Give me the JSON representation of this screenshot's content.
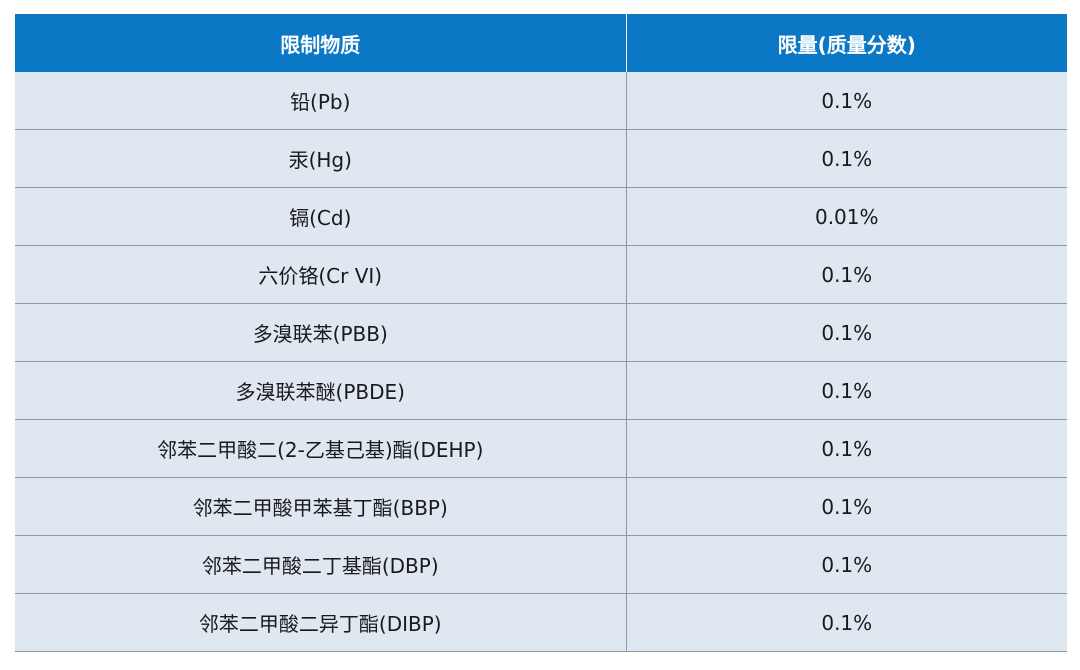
{
  "table": {
    "headers": [
      "限制物质",
      "限量(质量分数)"
    ],
    "rows": [
      [
        "铅(Pb)",
        "0.1%"
      ],
      [
        "汞(Hg)",
        "0.1%"
      ],
      [
        "镉(Cd)",
        "0.01%"
      ],
      [
        "六价铬(Cr VI)",
        "0.1%"
      ],
      [
        "多溴联苯(PBB)",
        "0.1%"
      ],
      [
        "多溴联苯醚(PBDE)",
        "0.1%"
      ],
      [
        "邻苯二甲酸二(2-乙基己基)酯(DEHP)",
        "0.1%"
      ],
      [
        "邻苯二甲酸甲苯基丁酯(BBP)",
        "0.1%"
      ],
      [
        "邻苯二甲酸二丁基酯(DBP)",
        "0.1%"
      ],
      [
        "邻苯二甲酸二异丁酯(DIBP)",
        "0.1%"
      ]
    ]
  },
  "colors": {
    "header_bg": "#0a78c4",
    "header_text": "#ffffff",
    "row_bg": "#dfe7f1",
    "grid_line": "#8a9aaa"
  }
}
